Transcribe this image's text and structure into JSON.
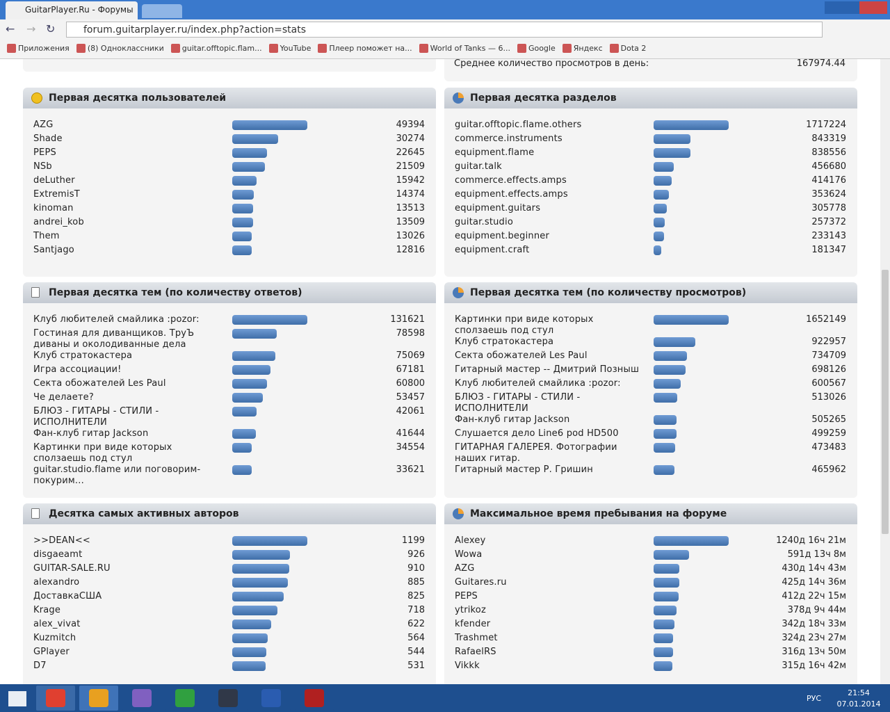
{
  "browser": {
    "tab_title": "GuitarPlayer.Ru - Форумы",
    "url": "forum.guitarplayer.ru/index.php?action=stats",
    "bookmarks": [
      "Приложения",
      "(8) Одноклассники",
      "guitar.offtopic.flam...",
      "YouTube",
      "Плеер поможет на...",
      "World of Tanks — 6...",
      "Google",
      "Яндекс",
      "Dota 2"
    ]
  },
  "top_stat": {
    "label": "Среднее количество просмотров в день:",
    "value": "167974.44"
  },
  "panels": [
    {
      "title": "Первая десятка пользователей",
      "rows": [
        {
          "name": "AZG",
          "value": 49394
        },
        {
          "name": "Shade",
          "value": 30274
        },
        {
          "name": "PEPS",
          "value": 22645
        },
        {
          "name": "NSb",
          "value": 21509
        },
        {
          "name": "deLuther",
          "value": 15942
        },
        {
          "name": "ExtremisT",
          "value": 14374
        },
        {
          "name": "kinoman",
          "value": 13513
        },
        {
          "name": "andrei_kob",
          "value": 13509
        },
        {
          "name": "Them",
          "value": 13026
        },
        {
          "name": "Santjago",
          "value": 12816
        }
      ]
    },
    {
      "title": "Первая десятка разделов",
      "rows": [
        {
          "name": "guitar.offtopic.flame.others",
          "value": 1717224
        },
        {
          "name": "commerce.instruments",
          "value": 843319
        },
        {
          "name": "equipment.flame",
          "value": 838556
        },
        {
          "name": "guitar.talk",
          "value": 456680
        },
        {
          "name": "commerce.effects.amps",
          "value": 414176
        },
        {
          "name": "equipment.effects.amps",
          "value": 353624
        },
        {
          "name": "equipment.guitars",
          "value": 305778
        },
        {
          "name": "guitar.studio",
          "value": 257372
        },
        {
          "name": "equipment.beginner",
          "value": 233143
        },
        {
          "name": "equipment.craft",
          "value": 181347
        }
      ]
    },
    {
      "title": "Первая десятка тем (по количеству ответов)",
      "rows": [
        {
          "name": "Клуб любителей смайлика :pozor:",
          "value": 131621
        },
        {
          "name": "Гостиная для диванщиков. ТруЪ диваны и околодиванные дела",
          "value": 78598
        },
        {
          "name": "Клуб стратокастера",
          "value": 75069
        },
        {
          "name": "Игра ассоциации!",
          "value": 67181
        },
        {
          "name": "Секта обожателей Les Paul",
          "value": 60800
        },
        {
          "name": "Че делаете?",
          "value": 53457
        },
        {
          "name": "БЛЮЗ - ГИТАРЫ - СТИЛИ - ИСПОЛНИТЕЛИ",
          "value": 42061
        },
        {
          "name": "Фан-клуб гитар Jackson",
          "value": 41644
        },
        {
          "name": "Картинки при виде которых сползаешь под стул",
          "value": 34554
        },
        {
          "name": "guitar.studio.flame или поговорим-покурим...",
          "value": 33621
        }
      ]
    },
    {
      "title": "Первая десятка тем (по количеству просмотров)",
      "rows": [
        {
          "name": "Картинки при виде которых сползаешь под стул",
          "value": 1652149
        },
        {
          "name": "Клуб стратокастера",
          "value": 922957
        },
        {
          "name": "Секта обожателей Les Paul",
          "value": 734709
        },
        {
          "name": "Гитарный мастер -- Дмитрий Позныш",
          "value": 698126
        },
        {
          "name": "Клуб любителей смайлика :pozor:",
          "value": 600567
        },
        {
          "name": "БЛЮЗ - ГИТАРЫ - СТИЛИ - ИСПОЛНИТЕЛИ",
          "value": 513026
        },
        {
          "name": "Фан-клуб гитар Jackson",
          "value": 505265
        },
        {
          "name": "Слушается дело Line6 pod HD500",
          "value": 499259
        },
        {
          "name": "ГИТАРНАЯ ГАЛЕРЕЯ. Фотографии наших гитар.",
          "value": 473483
        },
        {
          "name": "Гитарный мастер Р. Гришин",
          "value": 465962
        }
      ]
    },
    {
      "title": "Десятка самых активных авторов",
      "rows": [
        {
          "name": ">>DEAN<<",
          "value": 1199
        },
        {
          "name": "disgaeamt",
          "value": 926
        },
        {
          "name": "GUITAR-SALE.RU",
          "value": 910
        },
        {
          "name": "alexandro",
          "value": 885
        },
        {
          "name": "ДоставкаСША",
          "value": 825
        },
        {
          "name": "Krage",
          "value": 718
        },
        {
          "name": "alex_vivat",
          "value": 622
        },
        {
          "name": "Kuzmitch",
          "value": 564
        },
        {
          "name": "GPlayer",
          "value": 544
        },
        {
          "name": "D7",
          "value": 531
        }
      ]
    },
    {
      "title": "Максимальное время пребывания на форуме",
      "rows": [
        {
          "name": "Alexey",
          "value": "1240д 16ч 21м"
        },
        {
          "name": "Wowa",
          "value": "591д 13ч 8м"
        },
        {
          "name": "AZG",
          "value": "430д 14ч 43м"
        },
        {
          "name": "Guitares.ru",
          "value": "425д 14ч 36м"
        },
        {
          "name": "PEPS",
          "value": "412д 22ч 15м"
        },
        {
          "name": "ytrikoz",
          "value": "378д 9ч 44м"
        },
        {
          "name": "kfender",
          "value": "342д 18ч 33м"
        },
        {
          "name": "Trashmet",
          "value": "324д 23ч 27м"
        },
        {
          "name": "RafaelRS",
          "value": "316д 13ч 50м"
        },
        {
          "name": "Vikkk",
          "value": "315д 16ч 42м"
        }
      ]
    }
  ],
  "taskbar": {
    "lang": "РУС",
    "time": "21:54",
    "date": "07.01.2014"
  }
}
